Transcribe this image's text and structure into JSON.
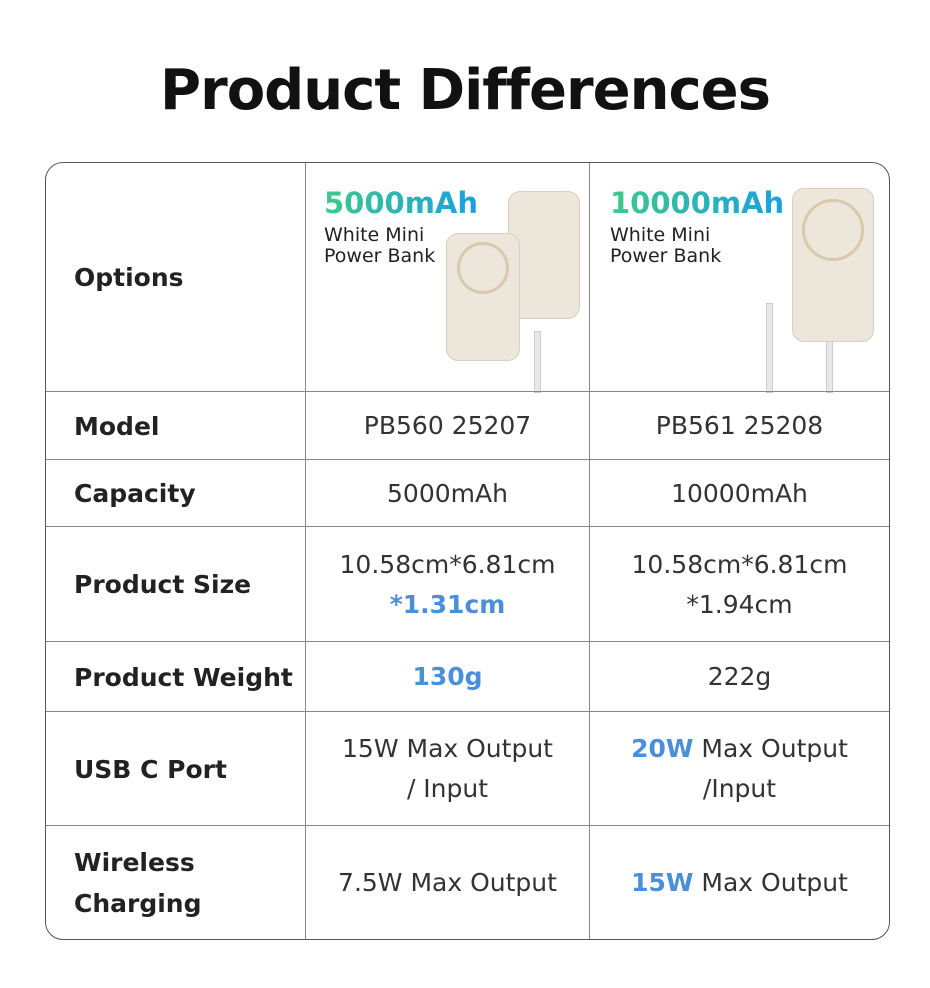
{
  "title": "Product Differences",
  "header": {
    "label": "Options",
    "products": [
      {
        "capacity": "5000mAh",
        "name_line1": "White Mini",
        "name_line2": "Power Bank"
      },
      {
        "capacity": "10000mAh",
        "name_line1": "White Mini",
        "name_line2": "Power Bank"
      }
    ]
  },
  "rows": [
    {
      "label": "Model",
      "a": "PB560 25207",
      "b": "PB561 25208"
    },
    {
      "label": "Capacity",
      "a": "5000mAh",
      "b": "10000mAh"
    },
    {
      "label": "Product Size",
      "a_line1": "10.58cm*6.81cm",
      "a_line2": "*1.31cm",
      "b_line1": "10.58cm*6.81cm",
      "b_line2": "*1.94cm"
    },
    {
      "label": "Product Weight",
      "a": "130g",
      "b": "222g"
    },
    {
      "label": "USB C Port",
      "a_line1": "15W Max Output",
      "a_line2": "/ Input",
      "b_hl": "20W",
      "b_rest": " Max Output",
      "b_line2": "/Input"
    },
    {
      "label_line1": "Wireless",
      "label_line2": "Charging",
      "a": "7.5W Max Output",
      "b_hl": "15W",
      "b_rest": " Max Output"
    }
  ],
  "colors": {
    "highlight": "#4a8fd8",
    "gradient_start": "#3ec98a",
    "gradient_end": "#1aa0e0"
  }
}
